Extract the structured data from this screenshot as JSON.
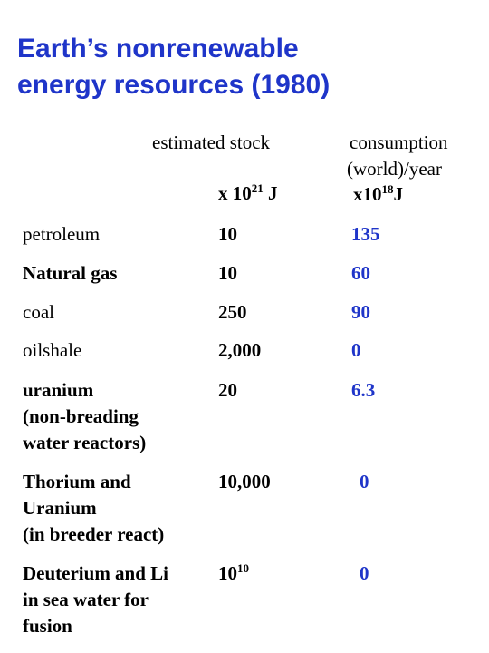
{
  "slide": {
    "title_line1": "Earth’s nonrenewable",
    "title_line2": "energy resources (1980)"
  },
  "headers": {
    "stock": "estimated stock",
    "stock_unit_prefix": "x 10",
    "stock_unit_exp": "21",
    "stock_unit_suffix": " J",
    "consumption_line1": "consumption",
    "consumption_line2": "(world)/year",
    "consumption_unit_prefix": "x10",
    "consumption_unit_exp": "18",
    "consumption_unit_suffix": "J"
  },
  "rows": [
    {
      "resource": "petroleum",
      "stock": "10",
      "consumption": "135"
    },
    {
      "resource": "Natural gas",
      "stock": "10",
      "consumption": "60"
    },
    {
      "resource": "coal",
      "stock": "250",
      "consumption": "90"
    },
    {
      "resource": "oilshale",
      "stock": "2,000",
      "consumption": "0"
    },
    {
      "resource_line1": "uranium",
      "resource_line2": "(non-breading",
      "resource_line3": "water reactors)",
      "stock": "20",
      "consumption": "6.3"
    },
    {
      "resource_line1": "Thorium and",
      "resource_line2": "Uranium",
      "resource_line3": "(in breeder react)",
      "stock": "10,000",
      "consumption": "0"
    },
    {
      "resource_line1": "Deuterium and Li",
      "resource_line2": "in sea water for",
      "resource_line3": "fusion",
      "stock_base": "10",
      "stock_exp": "10",
      "consumption": "0"
    }
  ],
  "colors": {
    "title": "#1f35c9",
    "consumption_values": "#1f35c9",
    "text": "#000000"
  }
}
